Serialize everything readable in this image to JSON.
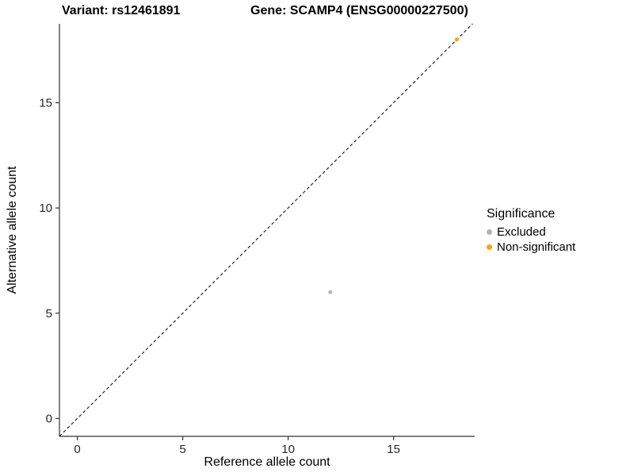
{
  "chart_data": {
    "type": "scatter",
    "title_left": "Variant: rs12461891",
    "title_right": "Gene: SCAMP4 (ENSG00000227500)",
    "xlabel": "Reference allele count",
    "ylabel": "Alternative allele count",
    "xlim": [
      -0.85,
      18.85
    ],
    "ylim": [
      -0.85,
      18.75
    ],
    "x_ticks": [
      0,
      5,
      10,
      15
    ],
    "y_ticks": [
      0,
      5,
      10,
      15
    ],
    "grid": false,
    "identity_line": {
      "slope": 1,
      "intercept": 0,
      "style": "dashed",
      "color": "#000000"
    },
    "series": [
      {
        "name": "Excluded",
        "color": "#b3b3b3",
        "points": [
          {
            "x": 12,
            "y": 6
          }
        ]
      },
      {
        "name": "Non-significant",
        "color": "#ffa500",
        "points": [
          {
            "x": 18,
            "y": 18
          }
        ]
      }
    ],
    "legend": {
      "title": "Significance",
      "position": "right",
      "entries": [
        {
          "label": "Excluded",
          "color": "#b3b3b3"
        },
        {
          "label": "Non-significant",
          "color": "#ffa500"
        }
      ]
    },
    "colors": {
      "axis_line": "#333333",
      "tick_label": "#262626"
    }
  }
}
